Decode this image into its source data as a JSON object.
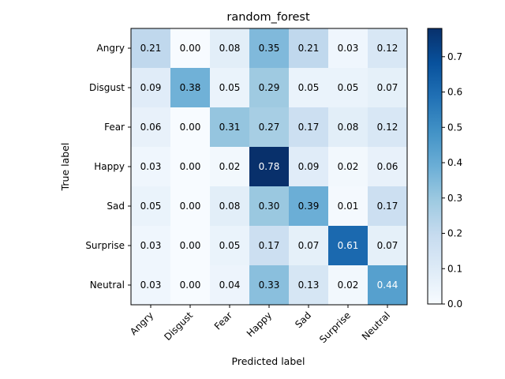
{
  "chart_data": {
    "type": "heatmap",
    "title": "random_forest",
    "xlabel": "Predicted label",
    "ylabel": "True label",
    "x_categories": [
      "Angry",
      "Disgust",
      "Fear",
      "Happy",
      "Sad",
      "Surprise",
      "Neutral"
    ],
    "y_categories": [
      "Angry",
      "Disgust",
      "Fear",
      "Happy",
      "Sad",
      "Surprise",
      "Neutral"
    ],
    "values": [
      [
        0.21,
        0.0,
        0.08,
        0.35,
        0.21,
        0.03,
        0.12
      ],
      [
        0.09,
        0.38,
        0.05,
        0.29,
        0.05,
        0.05,
        0.07
      ],
      [
        0.06,
        0.0,
        0.31,
        0.27,
        0.17,
        0.08,
        0.12
      ],
      [
        0.03,
        0.0,
        0.02,
        0.78,
        0.09,
        0.02,
        0.06
      ],
      [
        0.05,
        0.0,
        0.08,
        0.3,
        0.39,
        0.01,
        0.17
      ],
      [
        0.03,
        0.0,
        0.05,
        0.17,
        0.07,
        0.61,
        0.07
      ],
      [
        0.03,
        0.0,
        0.04,
        0.33,
        0.13,
        0.02,
        0.44
      ]
    ],
    "colorbar": {
      "min": 0.0,
      "max": 0.78,
      "ticks": [
        "0.0",
        "0.1",
        "0.2",
        "0.3",
        "0.4",
        "0.5",
        "0.6",
        "0.7"
      ],
      "colormap": "Blues"
    }
  }
}
